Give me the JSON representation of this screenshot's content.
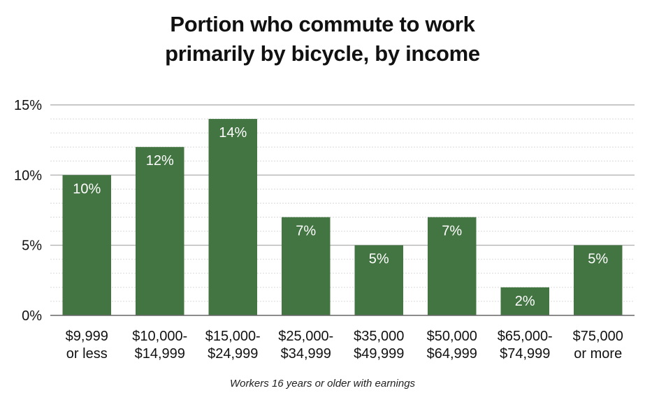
{
  "chart_data": {
    "type": "bar",
    "title_lines": [
      "Portion who commute to work",
      "primarily by bicycle, by income"
    ],
    "categories": [
      [
        "$9,999",
        "or less"
      ],
      [
        "$10,000-",
        "$14,999"
      ],
      [
        "$15,000-",
        "$24,999"
      ],
      [
        "$25,000-",
        "$34,999"
      ],
      [
        "$35,000",
        "$49,999"
      ],
      [
        "$50,000",
        "$64,999"
      ],
      [
        "$65,000-",
        "$74,999"
      ],
      [
        "$75,000",
        "or more"
      ]
    ],
    "values": [
      10,
      12,
      14,
      7,
      5,
      7,
      2,
      5
    ],
    "data_labels": [
      "10%",
      "12%",
      "14%",
      "7%",
      "5%",
      "7%",
      "2%",
      "5%"
    ],
    "ylim": [
      0,
      15
    ],
    "yticks": [
      0,
      5,
      10,
      15
    ],
    "ytick_labels": [
      "0%",
      "5%",
      "10%",
      "15%"
    ],
    "minor_grid_step": 1,
    "grid": true,
    "legend": "none",
    "footnote": "Workers 16 years or older with earnings",
    "colors": {
      "bar": "#437542",
      "major_grid": "#a6a6a6",
      "minor_grid": "#d9d9d9",
      "axis": "#666666"
    }
  }
}
